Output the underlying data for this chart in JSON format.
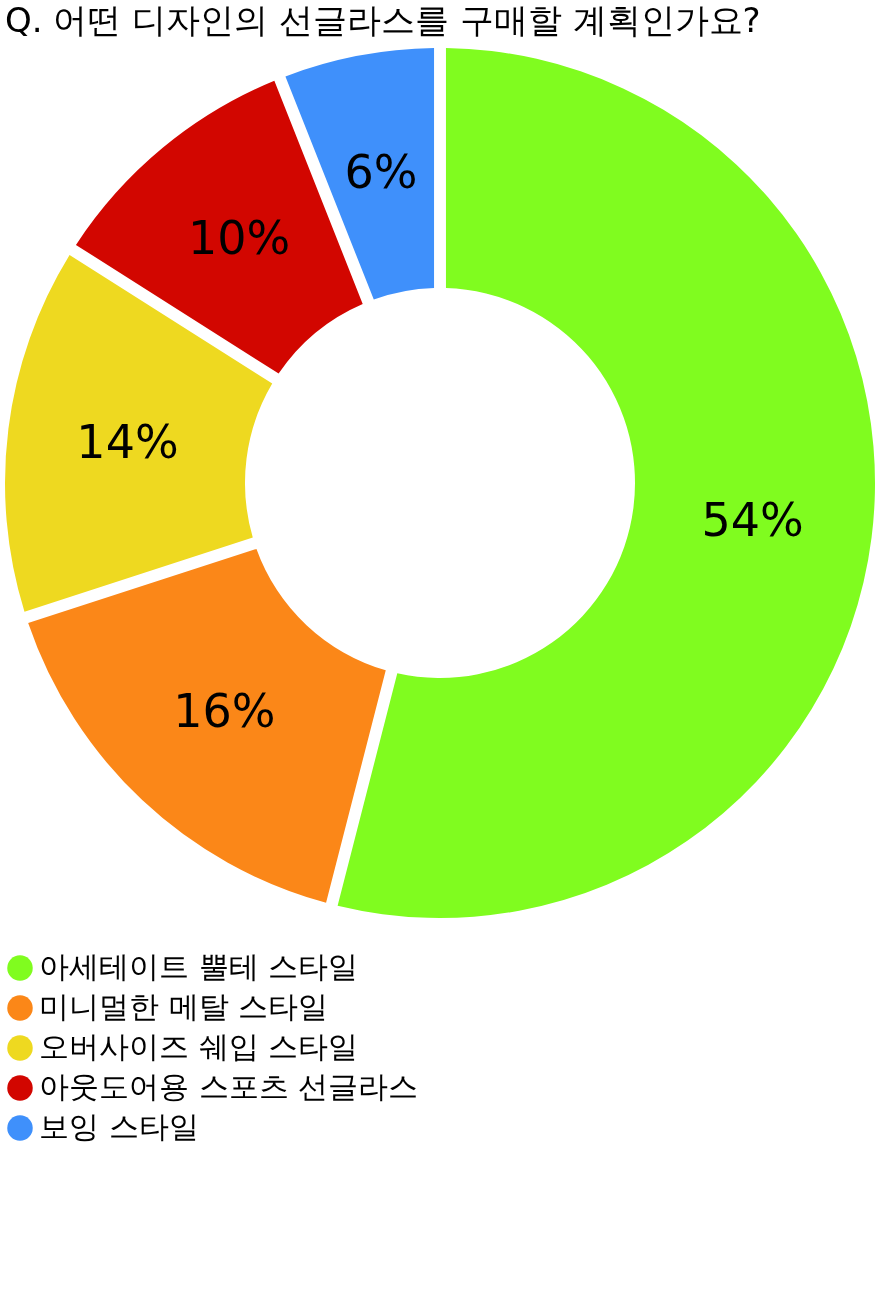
{
  "chart_data": {
    "type": "donut",
    "title": "Q. 어떤 디자인의 선글라스를 구매할 계획인가요?",
    "categories": [
      "아세테이트 뿔테 스타일",
      "미니멀한 메탈 스타일",
      "오버사이즈 쉐입 스타일",
      "아웃도어용 스포츠 선글라스",
      "보잉 스타일"
    ],
    "values": [
      54,
      16,
      14,
      10,
      6
    ],
    "colors": [
      "#80fc1f",
      "#fb8718",
      "#eed920",
      "#d20600",
      "#3f90fb"
    ],
    "value_labels": [
      "54%",
      "16%",
      "14%",
      "10%",
      "6%"
    ],
    "legend": "bottom"
  }
}
